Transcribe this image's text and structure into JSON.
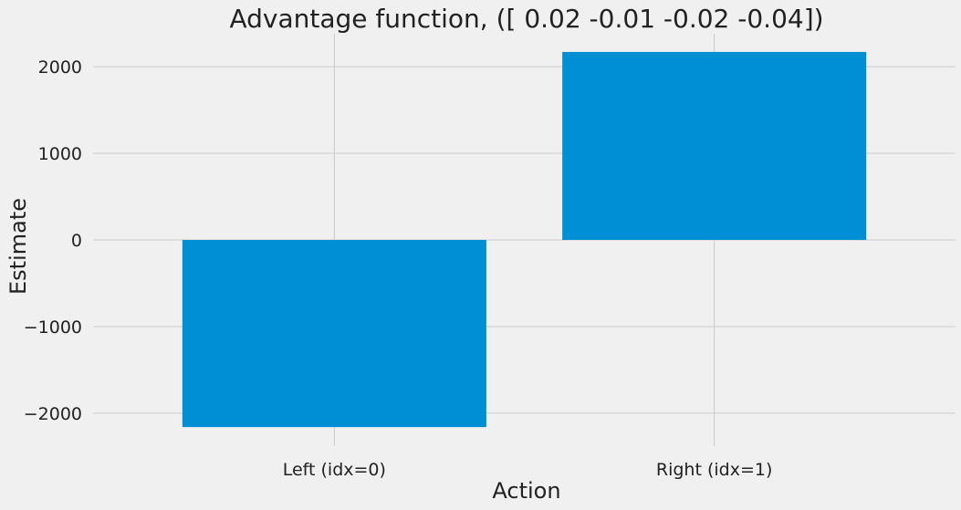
{
  "chart_data": {
    "type": "bar",
    "title": "Advantage function, ([ 0.02 -0.01 -0.02 -0.04])",
    "xlabel": "Action",
    "ylabel": "Estimate",
    "categories": [
      "Left (idx=0)",
      "Right (idx=1)"
    ],
    "values": [
      -2160,
      2170
    ],
    "yticks": [
      -2000,
      -1000,
      0,
      1000,
      2000
    ],
    "ytick_labels": [
      "−2000",
      "−1000",
      "0",
      "1000",
      "2000"
    ],
    "ylim": [
      -2380,
      2380
    ],
    "grid": true,
    "legend": "none",
    "bar_color": "#008fd5",
    "background_color": "#f0f0f0",
    "grid_color": "#cbcbcb"
  }
}
